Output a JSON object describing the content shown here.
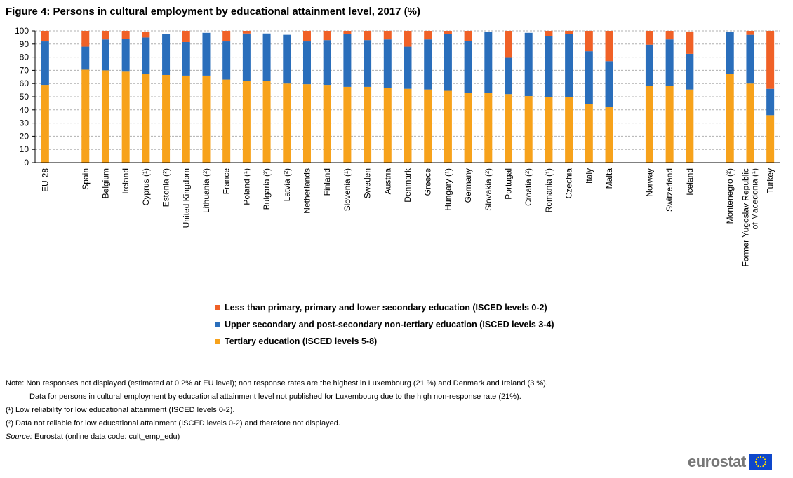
{
  "title": "Figure 4: Persons in cultural employment by educational attainment level, 2017 (%)",
  "chart_data": {
    "type": "bar",
    "stacked": true,
    "ylim": [
      0,
      100
    ],
    "yticks": [
      "0",
      "10",
      "20",
      "30",
      "40",
      "50",
      "60",
      "70",
      "80",
      "90",
      "100"
    ],
    "grid": true,
    "legend_position": "bottom",
    "categories": [
      "EU-28",
      "Spain",
      "Belgium",
      "Ireland",
      "Cyprus (¹)",
      "Estonia (²)",
      "United Kingdom",
      "Lithuania (²)",
      "France",
      "Poland (¹)",
      "Bulgaria (²)",
      "Latvia (²)",
      "Netherlands",
      "Finland",
      "Slovenia (¹)",
      "Sweden",
      "Austria",
      "Denmark",
      "Greece",
      "Hungary (¹)",
      "Germany",
      "Slovakia (²)",
      "Portugal",
      "Croatia (²)",
      "Romania (¹)",
      "Czechia",
      "Italy",
      "Malta",
      "Norway",
      "Switzerland",
      "Iceland",
      "Montenegro (²)",
      "Former Yugoslav Republic of Macedonia (¹)",
      "Turkey"
    ],
    "series": [
      {
        "name": "Tertiary education (ISCED levels 5-8)",
        "color": "#f7a21b",
        "values": [
          59,
          70.5,
          70,
          69,
          67.5,
          66.5,
          66,
          66,
          63,
          62,
          62,
          60,
          59.5,
          59,
          57.5,
          57.5,
          56.5,
          56,
          55.5,
          54.5,
          53,
          53,
          52,
          50.5,
          50,
          49.5,
          44.5,
          42,
          58,
          58,
          55.5,
          67.5,
          60,
          36
        ]
      },
      {
        "name": "Upper secondary and post-secondary non-tertiary education (ISCED levels 3-4)",
        "color": "#2a6ebb",
        "values": [
          33,
          17.5,
          23.5,
          25,
          27.5,
          31,
          25.5,
          32.5,
          29,
          36,
          36,
          37,
          32.5,
          34,
          40,
          35.5,
          37,
          32,
          38,
          43,
          39.5,
          46,
          27.5,
          48,
          46,
          48,
          40,
          35,
          31.5,
          35.5,
          27,
          31.5,
          37,
          20
        ]
      },
      {
        "name": "Less than primary, primary and lower secondary education (ISCED levels 0-2)",
        "color": "#f06127",
        "values": [
          8,
          12,
          6.5,
          6,
          4,
          0,
          8.5,
          0,
          8,
          2,
          0,
          0,
          8,
          7,
          2.5,
          7,
          6.5,
          12,
          6.5,
          2.5,
          7.5,
          0,
          20.5,
          0,
          4,
          2.5,
          15.5,
          23,
          10.5,
          6.5,
          17,
          0,
          3,
          44
        ]
      }
    ]
  },
  "legend": [
    {
      "label": "Less than primary, primary and lower secondary education (ISCED levels 0-2)",
      "color": "#f06127"
    },
    {
      "label": "Upper secondary and post-secondary non-tertiary education (ISCED levels 3-4)",
      "color": "#2a6ebb"
    },
    {
      "label": "Tertiary education (ISCED levels 5-8)",
      "color": "#f7a21b"
    }
  ],
  "notes": {
    "note1": "Note: Non responses not displayed (estimated at 0.2% at EU level); non response rates are the highest in Luxembourg (21 %) and Denmark and Ireland (3 %).",
    "note2": "Data for persons in cultural employment by educational attainment level not published for Luxembourg due to the high non-response rate (21%).",
    "note3": "(¹) Low reliability for low educational attainment (ISCED levels 0-2).",
    "note4": "(²) Data not reliable for low educational attainment (ISCED levels 0-2) and therefore not displayed.",
    "source_label": "Source:",
    "source_text": " Eurostat (online data code: cult_emp_edu)"
  },
  "logo": {
    "text": "eurostat",
    "icon": "eu-flag-icon",
    "flag_color": "#0e47cb",
    "star_color": "#ffdd00"
  }
}
